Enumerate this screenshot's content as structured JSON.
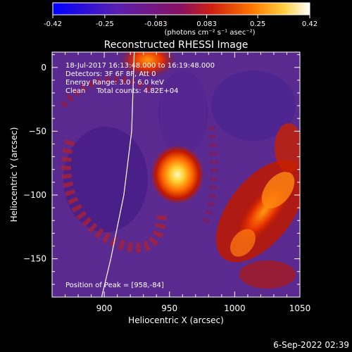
{
  "colorbar": {
    "tick_labels": [
      "-0.42",
      "-0.25",
      "-0.083",
      "0.083",
      "0.25",
      "0.42"
    ],
    "unit_label": "(photons cm⁻² s⁻¹ asec⁻²)"
  },
  "chart_data": {
    "type": "heatmap",
    "title": "Reconstructed RHESSI Image",
    "xlabel": "Heliocentric X (arcsec)",
    "ylabel": "Heliocentric Y (arcsec)",
    "xlim": [
      860,
      1050
    ],
    "ylim": [
      -180,
      12
    ],
    "x_ticks": [
      900,
      950,
      1000,
      1050
    ],
    "y_ticks": [
      0,
      -50,
      -100,
      -150
    ],
    "x_tick_labels": [
      "900",
      "950",
      "1000",
      "1050"
    ],
    "y_tick_labels": [
      "0",
      "−50",
      "−100",
      "−150"
    ],
    "value_range": [
      -0.42,
      0.42
    ],
    "colormap": "blue-purple-red-yellow-white",
    "peak_position": [
      958,
      -84
    ],
    "annotations": [
      "18-Jul-2017 16:13:48.000 to 16:19:48.000",
      "Detectors: 3F 6F 8F, Att 0",
      "Energy Range: 3.0 - 6.0 keV",
      "Clean     Total counts: 4.82E+04",
      "Position of Peak = [958,-84]"
    ],
    "limb_curve": [
      [
        923,
        12
      ],
      [
        921,
        -50
      ],
      [
        915,
        -100
      ],
      [
        905,
        -150
      ],
      [
        898,
        -180
      ]
    ]
  },
  "timestamp": "6-Sep-2022 02:39"
}
